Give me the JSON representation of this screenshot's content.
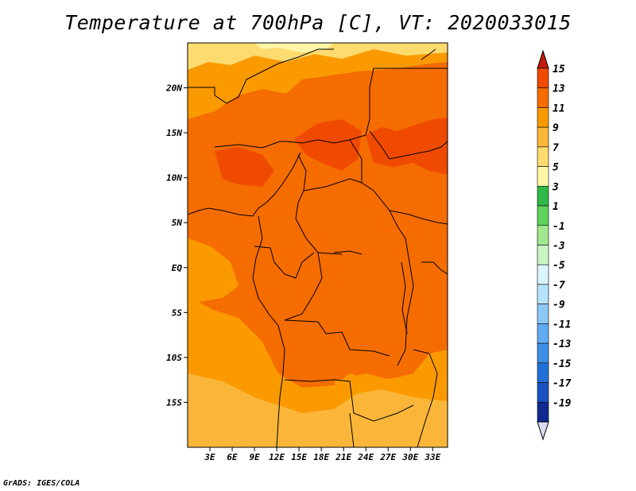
{
  "title": "Temperature at 700hPa [C], VT: 2020033015",
  "footer": "GrADS: IGES/COLA",
  "map": {
    "lon_range": [
      0,
      35
    ],
    "lat_range": [
      -20,
      25
    ],
    "lat_ticks": [
      {
        "value": 20,
        "label": "20N"
      },
      {
        "value": 15,
        "label": "15N"
      },
      {
        "value": 10,
        "label": "10N"
      },
      {
        "value": 5,
        "label": "5N"
      },
      {
        "value": 0,
        "label": "EQ"
      },
      {
        "value": -5,
        "label": "5S"
      },
      {
        "value": -10,
        "label": "10S"
      },
      {
        "value": -15,
        "label": "15S"
      }
    ],
    "lon_ticks": [
      {
        "value": 3,
        "label": "3E"
      },
      {
        "value": 6,
        "label": "6E"
      },
      {
        "value": 9,
        "label": "9E"
      },
      {
        "value": 12,
        "label": "12E"
      },
      {
        "value": 15,
        "label": "15E"
      },
      {
        "value": 18,
        "label": "18E"
      },
      {
        "value": 21,
        "label": "21E"
      },
      {
        "value": 24,
        "label": "24E"
      },
      {
        "value": 27,
        "label": "27E"
      },
      {
        "value": 30,
        "label": "30E"
      },
      {
        "value": 33,
        "label": "33E"
      }
    ]
  },
  "colorbar": {
    "labels": [
      "15",
      "13",
      "11",
      "9",
      "7",
      "5",
      "3",
      "1",
      "-1",
      "-3",
      "-5",
      "-7",
      "-9",
      "-11",
      "-13",
      "-15",
      "-17",
      "-19"
    ],
    "colors": [
      "#d92800",
      "#f04a00",
      "#f56c00",
      "#fa9a00",
      "#fbb63a",
      "#fddb6f",
      "#fef6a6",
      "#2fb845",
      "#5dd35b",
      "#a0e88d",
      "#c9f5c5",
      "#dbf5fe",
      "#b6e3fc",
      "#8cc8f6",
      "#62abf1",
      "#3d8fe6",
      "#2170d9",
      "#1952c2",
      "#0e2a90",
      "#0b136d"
    ],
    "over_color": "#c41a0c",
    "under_color": "#dcdcf5"
  }
}
